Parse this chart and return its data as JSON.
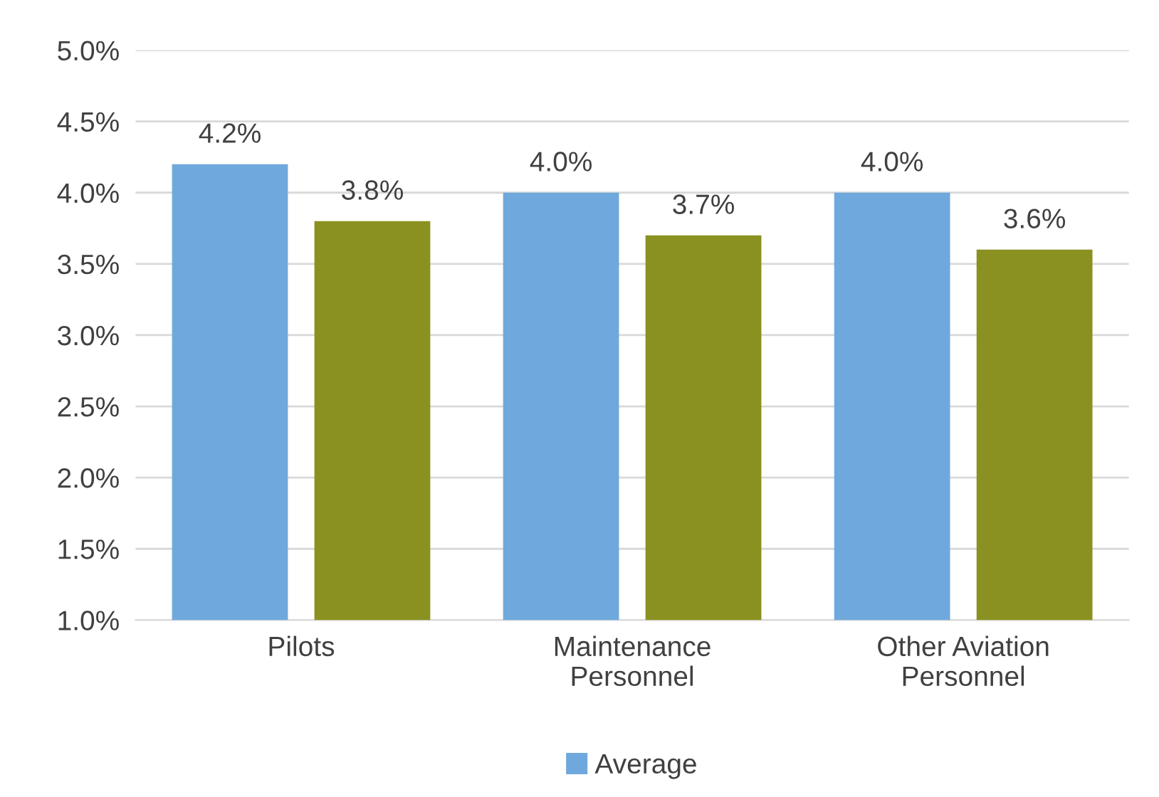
{
  "chart_data": {
    "type": "bar",
    "categories": [
      "Pilots",
      "Maintenance Personnel",
      "Other Aviation Personnel"
    ],
    "series": [
      {
        "name": "Average",
        "color": "#6fa8dc",
        "values": [
          4.2,
          4.0,
          4.0
        ],
        "value_labels": [
          "4.2%",
          "4.0%",
          "4.0%"
        ]
      },
      {
        "color": "#8a9120",
        "values": [
          3.8,
          3.7,
          3.6
        ],
        "value_labels": [
          "3.8%",
          "3.7%",
          "3.6%"
        ]
      }
    ],
    "ylim": [
      1.0,
      5.0
    ],
    "yticks": [
      {
        "value": 1.0,
        "label": "1.0%"
      },
      {
        "value": 1.5,
        "label": "1.5%"
      },
      {
        "value": 2.0,
        "label": "2.0%"
      },
      {
        "value": 2.5,
        "label": "2.5%"
      },
      {
        "value": 3.0,
        "label": "3.0%"
      },
      {
        "value": 3.5,
        "label": "3.5%"
      },
      {
        "value": 4.0,
        "label": "4.0%"
      },
      {
        "value": 4.5,
        "label": "4.5%"
      },
      {
        "value": 5.0,
        "label": "5.0%"
      }
    ],
    "grid": "y",
    "legend": "bottom"
  }
}
